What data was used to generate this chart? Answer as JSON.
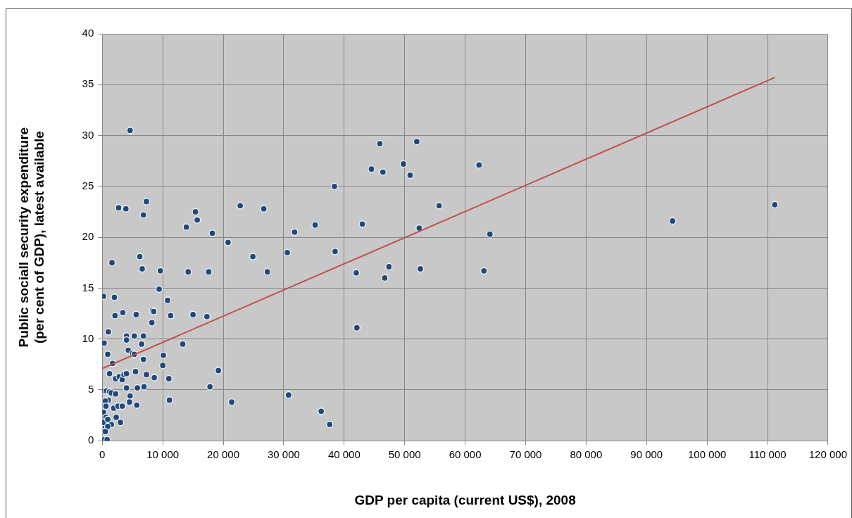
{
  "chart_data": {
    "type": "scatter",
    "xlabel": "GDP per capita (current US$), 2008",
    "ylabel": "Public sociall security expenditure\n(per cent of GDP), latest available",
    "xlim": [
      0,
      120000
    ],
    "ylim": [
      0,
      40
    ],
    "xticks": [
      0,
      {
        "value": 10000,
        "label": "10 000"
      },
      {
        "value": 20000,
        "label": "20 000"
      },
      {
        "value": 30000,
        "label": "30 000"
      },
      {
        "value": 40000,
        "label": "40 000"
      },
      {
        "value": 50000,
        "label": "50 000"
      },
      {
        "value": 60000,
        "label": "60 000"
      },
      {
        "value": 70000,
        "label": "70 000"
      },
      {
        "value": 80000,
        "label": "80 000"
      },
      {
        "value": 90000,
        "label": "90 000"
      },
      {
        "value": 100000,
        "label": "100 000"
      },
      {
        "value": 110000,
        "label": "110 000"
      },
      {
        "value": 120000,
        "label": "120 000"
      }
    ],
    "yticks": [
      0,
      5,
      10,
      15,
      20,
      25,
      30,
      35,
      40
    ],
    "grid": true,
    "legend": false,
    "marker": "circle",
    "series": [
      {
        "color": "#1f497d",
        "x": [
          4600,
          2700,
          3900,
          6800,
          7300,
          1600,
          6200,
          6600,
          9600,
          200,
          2000,
          9400,
          10800,
          3400,
          2100,
          5600,
          8300,
          8500,
          11300,
          8200,
          1000,
          4000,
          4000,
          5300,
          6800,
          300,
          6500,
          13300,
          4300,
          5000,
          900,
          5300,
          10100,
          6800,
          1700,
          10000,
          1200,
          2200,
          2800,
          3300,
          3600,
          4000,
          5500,
          7300,
          8600,
          11000,
          4000,
          5800,
          6900,
          17800,
          300,
          700,
          1200,
          1500,
          2200,
          4600,
          11100,
          21400,
          1000,
          500,
          600,
          1900,
          2600,
          3300,
          4500,
          5700,
          200,
          600,
          1500,
          2300,
          3000,
          500,
          900,
          500,
          300,
          800,
          100,
          900,
          13900,
          15400,
          15700,
          18200,
          14200,
          17600,
          15000,
          17300,
          19200,
          20800,
          22800,
          24900,
          26700,
          27300,
          30600,
          31800,
          35200,
          38400,
          38500,
          30800,
          36200,
          37600,
          42000,
          42100,
          43000,
          44500,
          45900,
          46400,
          46700,
          47400,
          49800,
          50900,
          52000,
          52400,
          52600,
          55700,
          62300,
          63100,
          64100,
          94300,
          111200
        ],
        "values": [
          30.5,
          22.9,
          22.8,
          22.2,
          23.5,
          17.5,
          18.1,
          16.9,
          16.7,
          14.2,
          14.1,
          14.9,
          13.8,
          12.6,
          12.3,
          12.4,
          12.8,
          12.7,
          12.3,
          11.6,
          10.7,
          10.3,
          9.9,
          10.3,
          10.3,
          9.6,
          9.5,
          9.5,
          8.9,
          8.6,
          8.5,
          8.5,
          8.4,
          8.0,
          7.6,
          7.4,
          6.6,
          6.1,
          6.3,
          6.0,
          6.5,
          6.6,
          6.8,
          6.5,
          6.2,
          6.1,
          5.2,
          5.2,
          5.3,
          5.3,
          4.9,
          4.9,
          4.8,
          4.7,
          4.6,
          4.4,
          4.0,
          3.8,
          4.0,
          3.9,
          3.4,
          3.2,
          3.4,
          3.4,
          3.8,
          3.5,
          2.8,
          2.3,
          1.6,
          2.3,
          1.8,
          1.4,
          1.4,
          0.9,
          0.1,
          0.1,
          1.8,
          2.1,
          21.0,
          22.5,
          21.7,
          20.4,
          16.6,
          16.6,
          12.4,
          12.2,
          6.9,
          19.5,
          23.1,
          18.1,
          22.8,
          16.6,
          18.5,
          20.5,
          21.2,
          25.0,
          18.6,
          4.5,
          2.9,
          1.6,
          16.5,
          11.1,
          21.3,
          26.7,
          29.2,
          26.4,
          16.0,
          17.1,
          27.2,
          26.1,
          29.4,
          20.9,
          16.9,
          23.1,
          27.1,
          16.7,
          20.3,
          21.6,
          23.2
        ]
      },
      {
        "type": "line",
        "color": "#c0504d",
        "marker": "none",
        "x": [
          0,
          111200
        ],
        "values": [
          7.1,
          35.7
        ]
      }
    ]
  }
}
